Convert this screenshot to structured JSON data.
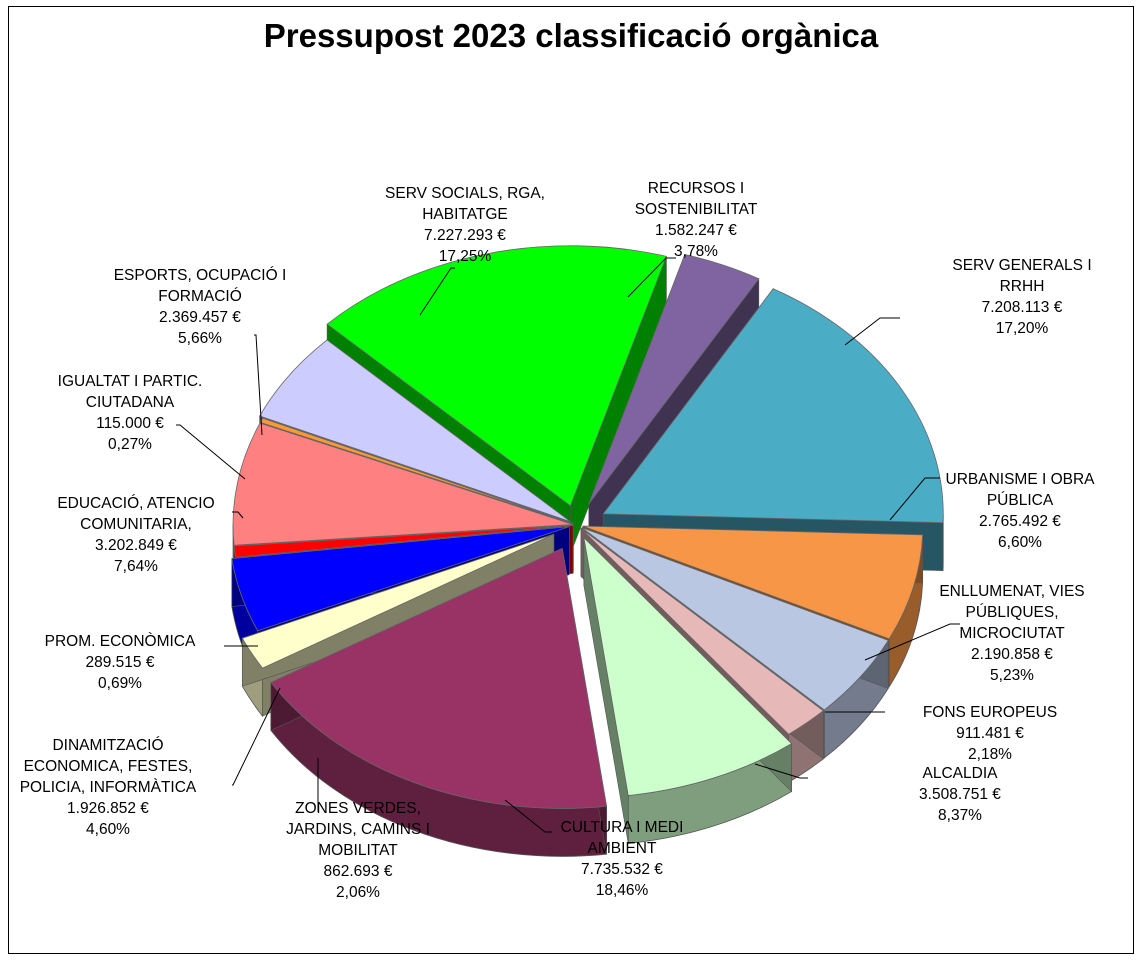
{
  "chart_data": {
    "type": "pie",
    "style": "3d-exploded",
    "title": "Pressupost 2023  classificació orgànica",
    "legend": "none",
    "slices": [
      {
        "label_lines": [
          "SERV GENERALS I",
          "RRHH"
        ],
        "amount": "7.208.113 €",
        "percent": "17,20%",
        "value": 7208113,
        "color": "#4bacc6"
      },
      {
        "label_lines": [
          "URBANISME I OBRA",
          "PÚBLICA"
        ],
        "amount": "2.765.492 €",
        "percent": "6,60%",
        "value": 2765492,
        "color": "#f79646"
      },
      {
        "label_lines": [
          "ENLLUMENAT, VIES",
          "PÚBLIQUES,",
          "MICROCIUTAT"
        ],
        "amount": "2.190.858 €",
        "percent": "5,23%",
        "value": 2190858,
        "color": "#b9c7e3"
      },
      {
        "label_lines": [
          "FONS EUROPEUS"
        ],
        "amount": "911.481 €",
        "percent": "2,18%",
        "value": 911481,
        "color": "#e6b9b8"
      },
      {
        "label_lines": [
          "ALCALDIA"
        ],
        "amount": "3.508.751 €",
        "percent": "8,37%",
        "value": 3508751,
        "color": "#ccffcc"
      },
      {
        "label_lines": [
          "CULTURA I MEDI",
          "AMBIENT"
        ],
        "amount": "7.735.532 €",
        "percent": "18,46%",
        "value": 7735532,
        "color": "#993366"
      },
      {
        "label_lines": [
          "ZONES VERDES,",
          "JARDINS, CAMINS I",
          "MOBILITAT"
        ],
        "amount": "862.693 €",
        "percent": "2,06%",
        "value": 862693,
        "color": "#ffffcc"
      },
      {
        "label_lines": [
          "DINAMITZACIÓ",
          "ECONOMICA, FESTES,",
          "POLICIA, INFORMÀTICA"
        ],
        "amount": "1.926.852 €",
        "percent": "4,60%",
        "value": 1926852,
        "color": "#0000ff"
      },
      {
        "label_lines": [
          "PROM. ECONÒMICA"
        ],
        "amount": "289.515 €",
        "percent": "0,69%",
        "value": 289515,
        "color": "#ff0000"
      },
      {
        "label_lines": [
          "EDUCACIÓ, ATENCIO",
          "COMUNITARIA,"
        ],
        "amount": "3.202.849 €",
        "percent": "7,64%",
        "value": 3202849,
        "color": "#ff8080"
      },
      {
        "label_lines": [
          "IGUALTAT I PARTIC.",
          "CIUTADANA"
        ],
        "amount": "115.000 €",
        "percent": "0,27%",
        "value": 115000,
        "color": "#ff9933"
      },
      {
        "label_lines": [
          "ESPORTS, OCUPACIÓ I",
          "FORMACIÓ"
        ],
        "amount": "2.369.457 €",
        "percent": "5,66%",
        "value": 2369457,
        "color": "#ccccff"
      },
      {
        "label_lines": [
          "SERV SOCIALS, RGA,",
          "HABITATGE"
        ],
        "amount": "7.227.293 €",
        "percent": "17,25%",
        "value": 7227293,
        "color": "#00ff00"
      },
      {
        "label_lines": [
          "RECURSOS I",
          "SOSTENIBILITAT"
        ],
        "amount": "1.582.247 €",
        "percent": "3,78%",
        "value": 1582247,
        "color": "#8064a2"
      }
    ]
  }
}
